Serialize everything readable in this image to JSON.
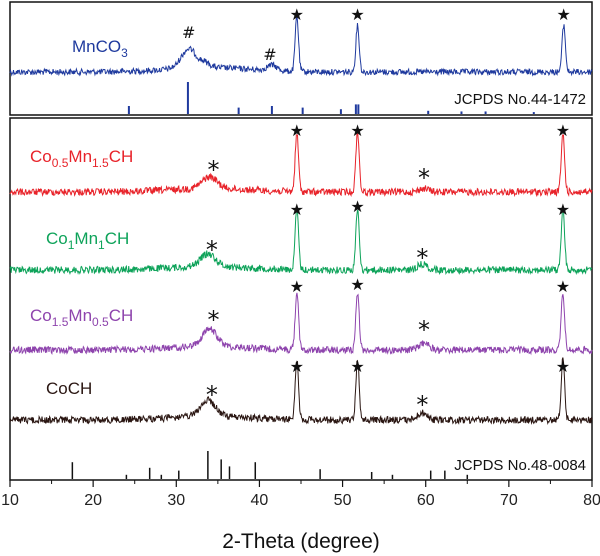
{
  "chart_data": {
    "type": "line",
    "xlabel": "2-Theta (degree)",
    "xlim": [
      10,
      80
    ],
    "x_ticks": [
      "10",
      "20",
      "30",
      "40",
      "50",
      "60",
      "70",
      "80"
    ],
    "markers": {
      "star": "★",
      "asterisk": "*",
      "hash": "#"
    },
    "upper_panel": {
      "series": [
        {
          "name": "MnCO₃",
          "label_main": "MnCO",
          "label_sub": "3",
          "color": "#1f3a9e",
          "peaks": [
            [
              31.5,
              0.35
            ],
            [
              33.5,
              0.08
            ],
            [
              41.5,
              0.1
            ],
            [
              44.5,
              1.0
            ],
            [
              51.8,
              0.85
            ],
            [
              76.6,
              0.85
            ]
          ],
          "hash_x": [
            31.5,
            41.5
          ],
          "star_x": [
            44.5,
            51.8,
            76.6
          ]
        }
      ],
      "reference": {
        "label": "JCPDS No.44-1472",
        "color": "#1f3a9e",
        "lines": [
          [
            24.3,
            0.25
          ],
          [
            31.4,
            1.0
          ],
          [
            37.5,
            0.2
          ],
          [
            41.5,
            0.25
          ],
          [
            45.2,
            0.2
          ],
          [
            49.8,
            0.15
          ],
          [
            51.6,
            0.3
          ],
          [
            51.9,
            0.3
          ],
          [
            60.3,
            0.1
          ],
          [
            64.3,
            0.08
          ],
          [
            67.2,
            0.08
          ],
          [
            73.0,
            0.06
          ]
        ]
      }
    },
    "lower_panel": {
      "series": [
        {
          "name": "Co0.5Mn1.5CH",
          "label": [
            [
              "Co",
              false
            ],
            [
              "0.5",
              true
            ],
            [
              "Mn",
              false
            ],
            [
              "1.5",
              true
            ],
            [
              "CH",
              false
            ]
          ],
          "color": "#e8232a",
          "peaks": [
            [
              34.0,
              0.2
            ],
            [
              44.5,
              1.0
            ],
            [
              51.8,
              1.05
            ],
            [
              59.8,
              0.06
            ],
            [
              76.5,
              1.0
            ]
          ],
          "asterisk_x": [
            34.0,
            59.8
          ],
          "star_x": [
            44.5,
            51.8,
            76.5
          ]
        },
        {
          "name": "Co1Mn1CH",
          "label": [
            [
              "Co",
              false
            ],
            [
              "1",
              true
            ],
            [
              "Mn",
              false
            ],
            [
              "1",
              true
            ],
            [
              "CH",
              false
            ]
          ],
          "color": "#0ea35a",
          "peaks": [
            [
              33.8,
              0.22
            ],
            [
              44.5,
              1.05
            ],
            [
              51.8,
              1.05
            ],
            [
              59.6,
              0.1
            ],
            [
              76.5,
              1.05
            ]
          ],
          "asterisk_x": [
            33.8,
            59.6
          ],
          "star_x": [
            44.5,
            51.8,
            76.5
          ]
        },
        {
          "name": "Co1.5Mn0.5CH",
          "label": [
            [
              "Co",
              false
            ],
            [
              "1.5",
              true
            ],
            [
              "Mn",
              false
            ],
            [
              "0.5",
              true
            ],
            [
              "CH",
              false
            ]
          ],
          "color": "#8e44ad",
          "peaks": [
            [
              34.0,
              0.3
            ],
            [
              44.5,
              1.0
            ],
            [
              51.8,
              1.0
            ],
            [
              59.8,
              0.12
            ],
            [
              76.5,
              1.0
            ]
          ],
          "asterisk_x": [
            34.0,
            59.8
          ],
          "star_x": [
            44.5,
            51.8,
            76.5
          ]
        },
        {
          "name": "CoCH",
          "label": [
            [
              "CoCH",
              false
            ]
          ],
          "color": "#2a1612",
          "peaks": [
            [
              33.8,
              0.28
            ],
            [
              44.5,
              1.05
            ],
            [
              51.8,
              1.05
            ],
            [
              59.6,
              0.12
            ],
            [
              76.5,
              1.05
            ]
          ],
          "asterisk_x": [
            33.8,
            59.6
          ],
          "star_x": [
            44.5,
            51.8,
            76.5
          ]
        }
      ],
      "reference": {
        "label": "JCPDS No.48-0084",
        "color": "#111111",
        "lines": [
          [
            17.5,
            0.6
          ],
          [
            24.0,
            0.15
          ],
          [
            26.8,
            0.4
          ],
          [
            28.2,
            0.15
          ],
          [
            30.3,
            0.3
          ],
          [
            33.8,
            1.0
          ],
          [
            35.4,
            0.7
          ],
          [
            36.4,
            0.45
          ],
          [
            39.5,
            0.6
          ],
          [
            47.3,
            0.35
          ],
          [
            53.5,
            0.25
          ],
          [
            56.0,
            0.15
          ],
          [
            60.6,
            0.3
          ],
          [
            62.3,
            0.3
          ],
          [
            65.0,
            0.15
          ]
        ]
      }
    }
  }
}
